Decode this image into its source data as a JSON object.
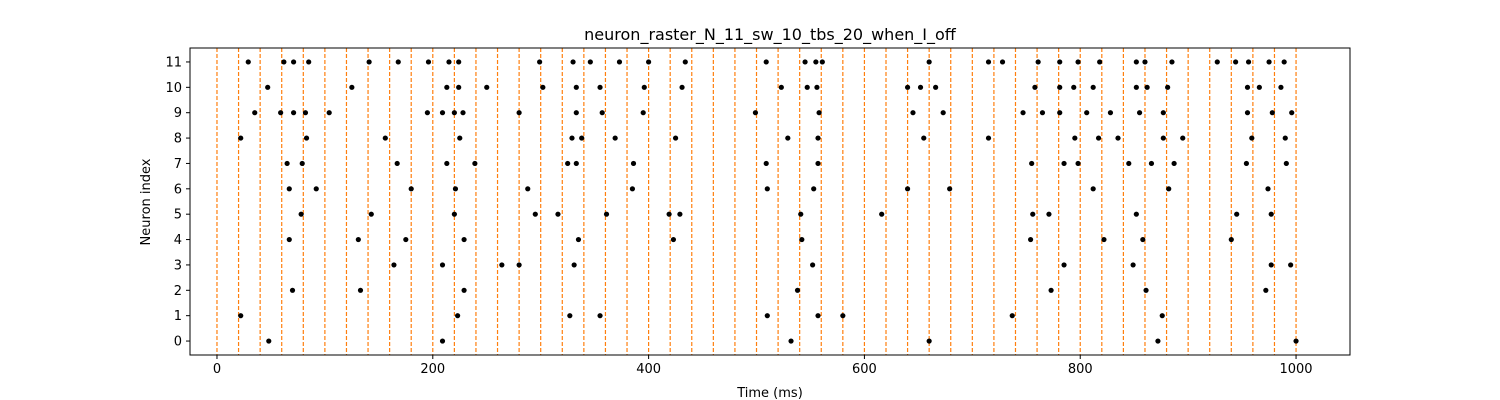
{
  "chart_data": {
    "type": "scatter",
    "title": "neuron_raster_N_11_sw_10_tbs_20_when_I_off",
    "xlabel": "Time (ms)",
    "ylabel": "Neuron index",
    "xlim": [
      -25,
      1050
    ],
    "ylim": [
      -0.55,
      11.55
    ],
    "x_ticks": [
      0,
      200,
      400,
      600,
      800,
      1000
    ],
    "y_ticks": [
      0,
      1,
      2,
      3,
      4,
      5,
      6,
      7,
      8,
      9,
      10,
      11
    ],
    "grid": false,
    "legend": "none",
    "vlines": {
      "x": [
        0,
        20,
        40,
        60,
        80,
        100,
        120,
        140,
        160,
        180,
        200,
        220,
        240,
        260,
        280,
        300,
        320,
        340,
        360,
        380,
        400,
        420,
        440,
        460,
        480,
        500,
        520,
        540,
        560,
        580,
        600,
        620,
        640,
        660,
        680,
        700,
        720,
        740,
        760,
        780,
        800,
        820,
        840,
        860,
        880,
        900,
        920,
        940,
        960,
        980,
        1000
      ],
      "style": "dashed"
    },
    "series": [
      {
        "marker": "dot",
        "points": [
          [
            48,
            0
          ],
          [
            209,
            0
          ],
          [
            532,
            0
          ],
          [
            660,
            0
          ],
          [
            872,
            0
          ],
          [
            1000,
            0
          ],
          [
            22,
            1
          ],
          [
            223,
            1
          ],
          [
            327,
            1
          ],
          [
            355,
            1
          ],
          [
            510,
            1
          ],
          [
            557,
            1
          ],
          [
            580,
            1
          ],
          [
            737,
            1
          ],
          [
            876,
            1
          ],
          [
            70,
            2
          ],
          [
            133,
            2
          ],
          [
            229,
            2
          ],
          [
            538,
            2
          ],
          [
            773,
            2
          ],
          [
            861,
            2
          ],
          [
            972,
            2
          ],
          [
            164,
            3
          ],
          [
            209,
            3
          ],
          [
            264,
            3
          ],
          [
            280,
            3
          ],
          [
            331,
            3
          ],
          [
            552,
            3
          ],
          [
            785,
            3
          ],
          [
            849,
            3
          ],
          [
            977,
            3
          ],
          [
            995,
            3
          ],
          [
            67,
            4
          ],
          [
            131,
            4
          ],
          [
            175,
            4
          ],
          [
            229,
            4
          ],
          [
            335,
            4
          ],
          [
            423,
            4
          ],
          [
            542,
            4
          ],
          [
            754,
            4
          ],
          [
            822,
            4
          ],
          [
            858,
            4
          ],
          [
            940,
            4
          ],
          [
            78,
            5
          ],
          [
            143,
            5
          ],
          [
            220,
            5
          ],
          [
            295,
            5
          ],
          [
            316,
            5
          ],
          [
            361,
            5
          ],
          [
            419,
            5
          ],
          [
            429,
            5
          ],
          [
            541,
            5
          ],
          [
            616,
            5
          ],
          [
            756,
            5
          ],
          [
            771,
            5
          ],
          [
            852,
            5
          ],
          [
            945,
            5
          ],
          [
            977,
            5
          ],
          [
            67,
            6
          ],
          [
            92,
            6
          ],
          [
            180,
            6
          ],
          [
            221,
            6
          ],
          [
            288,
            6
          ],
          [
            385,
            6
          ],
          [
            510,
            6
          ],
          [
            553,
            6
          ],
          [
            640,
            6
          ],
          [
            679,
            6
          ],
          [
            812,
            6
          ],
          [
            882,
            6
          ],
          [
            974,
            6
          ],
          [
            65,
            7
          ],
          [
            79,
            7
          ],
          [
            167,
            7
          ],
          [
            213,
            7
          ],
          [
            239,
            7
          ],
          [
            325,
            7
          ],
          [
            333,
            7
          ],
          [
            386,
            7
          ],
          [
            509,
            7
          ],
          [
            557,
            7
          ],
          [
            755,
            7
          ],
          [
            785,
            7
          ],
          [
            798,
            7
          ],
          [
            845,
            7
          ],
          [
            866,
            7
          ],
          [
            887,
            7
          ],
          [
            954,
            7
          ],
          [
            991,
            7
          ],
          [
            22,
            8
          ],
          [
            83,
            8
          ],
          [
            156,
            8
          ],
          [
            225,
            8
          ],
          [
            329,
            8
          ],
          [
            338,
            8
          ],
          [
            369,
            8
          ],
          [
            425,
            8
          ],
          [
            529,
            8
          ],
          [
            557,
            8
          ],
          [
            655,
            8
          ],
          [
            715,
            8
          ],
          [
            795,
            8
          ],
          [
            817,
            8
          ],
          [
            835,
            8
          ],
          [
            877,
            8
          ],
          [
            895,
            8
          ],
          [
            959,
            8
          ],
          [
            990,
            8
          ],
          [
            35,
            9
          ],
          [
            59,
            9
          ],
          [
            71,
            9
          ],
          [
            82,
            9
          ],
          [
            104,
            9
          ],
          [
            195,
            9
          ],
          [
            209,
            9
          ],
          [
            220,
            9
          ],
          [
            228,
            9
          ],
          [
            280,
            9
          ],
          [
            333,
            9
          ],
          [
            357,
            9
          ],
          [
            395,
            9
          ],
          [
            499,
            9
          ],
          [
            558,
            9
          ],
          [
            645,
            9
          ],
          [
            673,
            9
          ],
          [
            747,
            9
          ],
          [
            765,
            9
          ],
          [
            781,
            9
          ],
          [
            806,
            9
          ],
          [
            828,
            9
          ],
          [
            855,
            9
          ],
          [
            877,
            9
          ],
          [
            955,
            9
          ],
          [
            978,
            9
          ],
          [
            996,
            9
          ],
          [
            47,
            10
          ],
          [
            125,
            10
          ],
          [
            213,
            10
          ],
          [
            224,
            10
          ],
          [
            250,
            10
          ],
          [
            302,
            10
          ],
          [
            333,
            10
          ],
          [
            355,
            10
          ],
          [
            396,
            10
          ],
          [
            431,
            10
          ],
          [
            523,
            10
          ],
          [
            547,
            10
          ],
          [
            556,
            10
          ],
          [
            640,
            10
          ],
          [
            652,
            10
          ],
          [
            666,
            10
          ],
          [
            758,
            10
          ],
          [
            781,
            10
          ],
          [
            794,
            10
          ],
          [
            812,
            10
          ],
          [
            852,
            10
          ],
          [
            862,
            10
          ],
          [
            881,
            10
          ],
          [
            955,
            10
          ],
          [
            966,
            10
          ],
          [
            986,
            10
          ],
          [
            29,
            11
          ],
          [
            62,
            11
          ],
          [
            71,
            11
          ],
          [
            85,
            11
          ],
          [
            141,
            11
          ],
          [
            168,
            11
          ],
          [
            196,
            11
          ],
          [
            215,
            11
          ],
          [
            224,
            11
          ],
          [
            299,
            11
          ],
          [
            330,
            11
          ],
          [
            346,
            11
          ],
          [
            373,
            11
          ],
          [
            400,
            11
          ],
          [
            434,
            11
          ],
          [
            509,
            11
          ],
          [
            545,
            11
          ],
          [
            555,
            11
          ],
          [
            561,
            11
          ],
          [
            660,
            11
          ],
          [
            715,
            11
          ],
          [
            728,
            11
          ],
          [
            761,
            11
          ],
          [
            781,
            11
          ],
          [
            798,
            11
          ],
          [
            818,
            11
          ],
          [
            852,
            11
          ],
          [
            860,
            11
          ],
          [
            885,
            11
          ],
          [
            927,
            11
          ],
          [
            944,
            11
          ],
          [
            956,
            11
          ],
          [
            975,
            11
          ],
          [
            989,
            11
          ]
        ]
      }
    ],
    "colors": {
      "marker": "#000000",
      "vline": "#ff7f0e",
      "axis": "#000000"
    }
  }
}
